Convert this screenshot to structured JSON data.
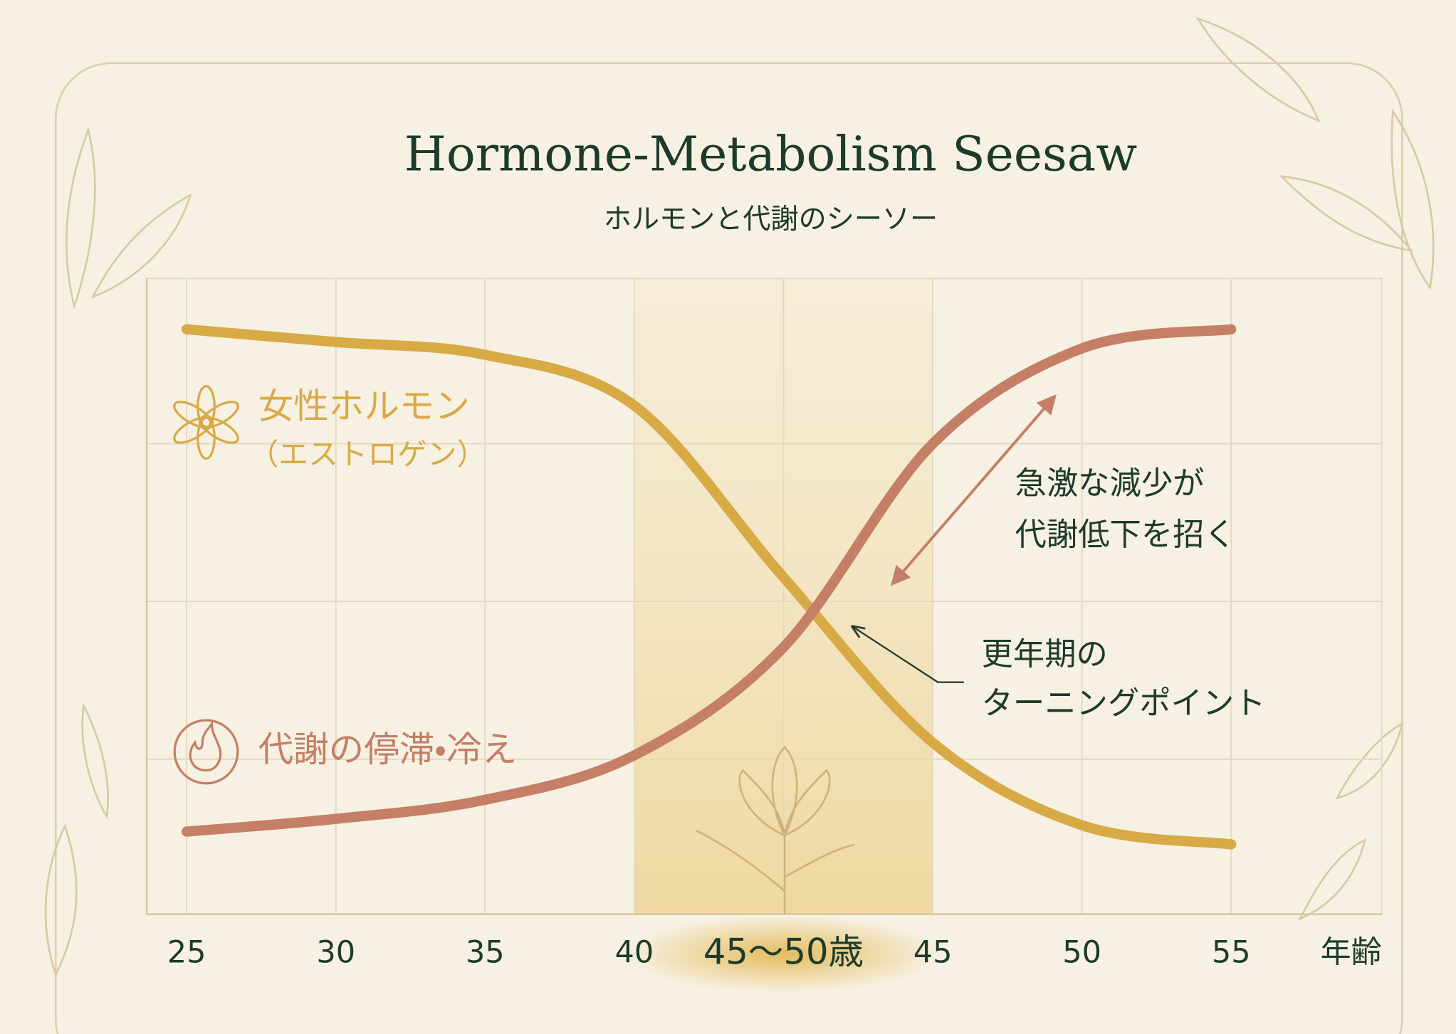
{
  "chart_data": {
    "type": "line",
    "title": "Hormone-Metabolism Seesaw",
    "subtitle": "ホルモンと代謝のシーソー",
    "x_label": "年齢",
    "categories": [
      "25",
      "30",
      "35",
      "40",
      "45〜50歳",
      "45",
      "50",
      "55"
    ],
    "ylim": [
      0,
      100
    ],
    "series": [
      {
        "name": "女性ホルモン",
        "color": "#d8aa46",
        "values": [
          92,
          90,
          88,
          80,
          53,
          27,
          14,
          11
        ]
      },
      {
        "name": "代謝の停滞・冷え",
        "color": "#c47f66",
        "values": [
          13,
          15,
          18,
          25,
          42,
          74,
          89,
          92
        ]
      }
    ],
    "annotations": [
      "（エストロゲン）",
      "急激な減少が",
      "代謝低下を招く",
      "更年期の",
      "ターニングポイント"
    ]
  }
}
